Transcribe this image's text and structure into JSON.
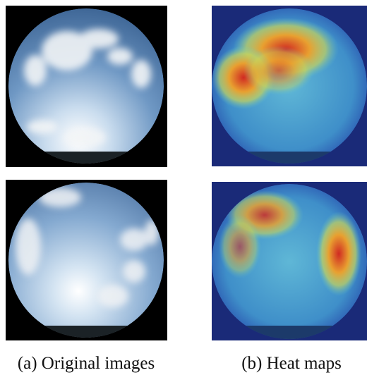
{
  "figure": {
    "captions": [
      "(a) Original images",
      "(b) Heat maps"
    ]
  }
}
